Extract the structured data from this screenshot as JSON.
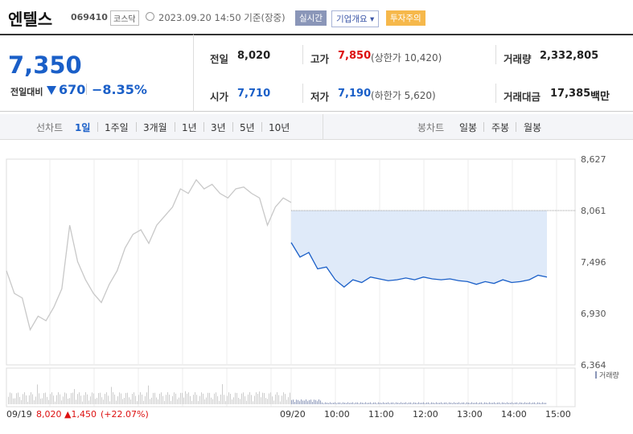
{
  "header": {
    "name": "엔텔스",
    "code": "069410",
    "market": "코스닥",
    "timestamp": "2023.09.20 14:50  기준(장중)",
    "badge_realtime": "실시간",
    "badge_overview": "기업개요 ▾",
    "badge_warning": "투자주의"
  },
  "price": {
    "current": "7,350",
    "change_label": "전일대비",
    "change_value": "670",
    "change_pct": "−8.35%"
  },
  "info": {
    "prev_label": "전일",
    "prev_value": "8,020",
    "high_label": "고가",
    "high_value": "7,850",
    "high_limit": "(상한가 10,420)",
    "volume_label": "거래량",
    "volume_value": "2,332,805",
    "open_label": "시가",
    "open_value": "7,710",
    "low_label": "저가",
    "low_value": "7,190",
    "low_limit": "(하한가 5,620)",
    "amount_label": "거래대금",
    "amount_value": "17,385",
    "amount_unit": "백만"
  },
  "tabs": {
    "line_label": "선차트",
    "line_tabs": [
      "1일",
      "1주일",
      "3개월",
      "1년",
      "3년",
      "5년",
      "10년"
    ],
    "candle_label": "봉차트",
    "candle_tabs": [
      "일봉",
      "주봉",
      "월봉"
    ]
  },
  "colors": {
    "accent_blue": "#1a5fc8",
    "red": "#d11",
    "fill": "#dfeaf9",
    "grey_line": "#c8c8c8"
  },
  "chart_data": {
    "type": "line",
    "y_ticks": [
      "8,627",
      "8,061",
      "7,496",
      "6,930",
      "6,364"
    ],
    "ylim": [
      6364,
      8627
    ],
    "reference_price": 8061,
    "x_ticks": [
      "09/19",
      "09/20",
      "10:00",
      "11:00",
      "12:00",
      "13:00",
      "14:00",
      "15:00"
    ],
    "volume_label": "거래량",
    "prev_day_summary": {
      "date": "09/19",
      "close": "8,020",
      "change": "▲1,450",
      "pct": "(+22.07%)"
    },
    "series": [
      {
        "values_prev_day": [
          7400,
          7150,
          7100,
          6750,
          6900,
          6850,
          7000,
          7200,
          7900,
          7500,
          7300,
          7150,
          7050,
          7250,
          7400,
          7650,
          7800,
          7850,
          7700,
          7900,
          8000,
          8100,
          8300,
          8250,
          8400,
          8300,
          8350,
          8250,
          8200,
          8300,
          8320,
          8250,
          8200,
          7900,
          8100,
          8200,
          8150
        ],
        "values_today": [
          7710,
          7550,
          7600,
          7420,
          7440,
          7300,
          7220,
          7300,
          7270,
          7330,
          7310,
          7290,
          7300,
          7320,
          7300,
          7330,
          7310,
          7300,
          7310,
          7290,
          7280,
          7250,
          7280,
          7260,
          7300,
          7270,
          7280,
          7300,
          7350,
          7330
        ]
      }
    ]
  }
}
